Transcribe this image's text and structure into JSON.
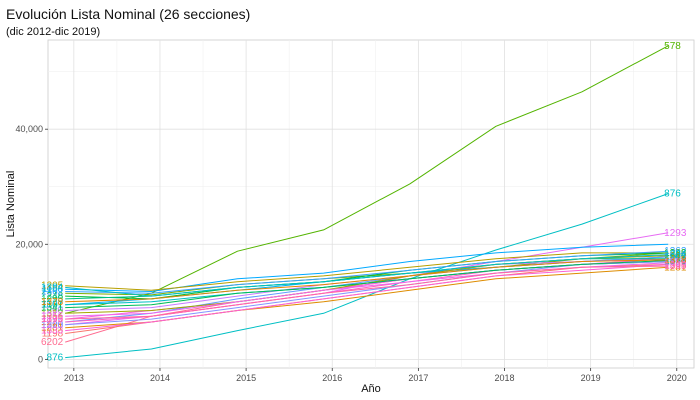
{
  "chart_title": "Evolución Lista Nominal (26 secciones)",
  "chart_subtitle": "(dic 2012-dic 2019)",
  "chart_data": {
    "type": "line",
    "title": "Evolución Lista Nominal (26 secciones)",
    "subtitle": "(dic 2012-dic 2019)",
    "xlabel": "Año",
    "ylabel": "Lista Nominal",
    "xlim": [
      2012.7,
      2020.2
    ],
    "ylim": [
      -1500,
      55500
    ],
    "x_ticks": [
      2013,
      2014,
      2015,
      2016,
      2017,
      2018,
      2019,
      2020
    ],
    "y_ticks": [
      0,
      20000,
      40000
    ],
    "y_tick_labels": [
      "0",
      "20,000",
      "40,000"
    ],
    "grid": true,
    "x": [
      2012.9,
      2013.9,
      2014.9,
      2015.9,
      2016.9,
      2017.9,
      2018.9,
      2019.9
    ],
    "series": [
      {
        "name": "578",
        "color": "#53B400",
        "values": [
          8000,
          11500,
          18800,
          22500,
          30500,
          40500,
          46500,
          54500
        ],
        "label_left": false,
        "label_right": true
      },
      {
        "name": "876",
        "color": "#00BFC4",
        "values": [
          300,
          1800,
          5000,
          8000,
          14000,
          19000,
          23500,
          28800
        ],
        "label_left": true,
        "label_right": true
      },
      {
        "name": "1293",
        "color": "#E76BF3",
        "values": [
          6000,
          7500,
          9500,
          11500,
          14500,
          17000,
          19500,
          22000
        ],
        "label_left": true,
        "label_right": true
      },
      {
        "name": "1158",
        "color": "#00A9FF",
        "values": [
          12200,
          11800,
          14000,
          15000,
          17000,
          18500,
          19500,
          20000
        ],
        "label_left": true,
        "label_right": false
      },
      {
        "name": "1236",
        "color": "#7CAE00",
        "values": [
          11500,
          11200,
          13000,
          14000,
          15000,
          16000,
          17500,
          18500
        ],
        "label_left": false,
        "label_right": true
      },
      {
        "name": "6202",
        "color": "#FF6C91",
        "values": [
          3000,
          7500,
          10000,
          12000,
          14000,
          15500,
          16500,
          17000
        ],
        "label_left": true,
        "label_right": false
      },
      {
        "name": "1198",
        "color": "#F8766D",
        "values": [
          4500,
          6500,
          8500,
          10500,
          12500,
          14500,
          16000,
          16500
        ],
        "label_left": true,
        "label_right": false
      },
      {
        "name": "1167",
        "color": "#00B0F6",
        "values": [
          9500,
          10500,
          12000,
          13500,
          15000,
          16000,
          17000,
          17800
        ],
        "label_left": true,
        "label_right": true
      },
      {
        "name": "1172",
        "color": "#F564E3",
        "values": [
          7000,
          8500,
          10000,
          12000,
          14000,
          15500,
          16500,
          17500
        ],
        "label_left": true,
        "label_right": true
      },
      {
        "name": "1205",
        "color": "#B79F00",
        "values": [
          12800,
          12000,
          13500,
          14500,
          16000,
          17500,
          18500,
          18500
        ],
        "label_left": true,
        "label_right": false
      },
      {
        "name": "1233",
        "color": "#619CFF",
        "values": [
          6500,
          8000,
          10500,
          12500,
          14500,
          16000,
          17000,
          17800
        ],
        "label_left": true,
        "label_right": true
      },
      {
        "name": "1248",
        "color": "#00BA38",
        "values": [
          11000,
          10500,
          12500,
          13500,
          15500,
          17000,
          18000,
          18500
        ],
        "label_left": true,
        "label_right": true
      },
      {
        "name": "1260",
        "color": "#C77CFF",
        "values": [
          8500,
          9000,
          11000,
          13000,
          14500,
          16500,
          17000,
          17500
        ],
        "label_left": true,
        "label_right": true
      },
      {
        "name": "1277",
        "color": "#FF61C3",
        "values": [
          6500,
          7500,
          9500,
          11500,
          13500,
          15500,
          16500,
          17500
        ],
        "label_left": true,
        "label_right": true
      },
      {
        "name": "1281",
        "color": "#DE8C00",
        "values": [
          5500,
          6500,
          8500,
          10000,
          12000,
          14000,
          15000,
          16000
        ],
        "label_left": true,
        "label_right": true
      },
      {
        "name": "1295",
        "color": "#00C08B",
        "values": [
          10500,
          11000,
          12500,
          13500,
          15000,
          16500,
          17500,
          17500
        ],
        "label_left": true,
        "label_right": true
      },
      {
        "name": "1301",
        "color": "#00BFC4",
        "values": [
          9500,
          10000,
          11500,
          12500,
          14000,
          15500,
          16500,
          17000
        ],
        "label_left": true,
        "label_right": true
      },
      {
        "name": "1312",
        "color": "#A3A500",
        "values": [
          8000,
          8500,
          10000,
          12000,
          14500,
          16500,
          17500,
          18000
        ],
        "label_left": true,
        "label_right": true
      },
      {
        "name": "1320",
        "color": "#8494FF",
        "values": [
          6000,
          7000,
          9000,
          11000,
          13000,
          15000,
          16500,
          17000
        ],
        "label_left": true,
        "label_right": true
      },
      {
        "name": "1333",
        "color": "#FB61D7",
        "values": [
          5000,
          6500,
          8500,
          10500,
          12500,
          14500,
          15500,
          16500
        ],
        "label_left": true,
        "label_right": true
      },
      {
        "name": "1341",
        "color": "#00BC56",
        "values": [
          9000,
          9500,
          11500,
          12500,
          14000,
          15500,
          16500,
          17200
        ],
        "label_left": true,
        "label_right": true
      },
      {
        "name": "1356",
        "color": "#EF67EB",
        "values": [
          7500,
          8000,
          10000,
          12000,
          13500,
          15000,
          16000,
          16800
        ],
        "label_left": true,
        "label_right": true
      },
      {
        "name": "1362",
        "color": "#35A2FF",
        "values": [
          11800,
          11500,
          13000,
          14000,
          15500,
          17000,
          18000,
          18800
        ],
        "label_left": true,
        "label_right": true
      },
      {
        "name": "1378",
        "color": "#E58700",
        "values": [
          10000,
          10500,
          12000,
          13000,
          14500,
          16000,
          17000,
          17300
        ],
        "label_left": true,
        "label_right": true
      },
      {
        "name": "1384",
        "color": "#00BFC4",
        "values": [
          12500,
          11000,
          12500,
          13500,
          15000,
          16500,
          17500,
          18200
        ],
        "label_left": true,
        "label_right": true
      },
      {
        "name": "1395",
        "color": "#FF67A4",
        "values": [
          7000,
          7500,
          9500,
          11500,
          13000,
          15000,
          16000,
          16200
        ],
        "label_left": true,
        "label_right": true
      }
    ]
  }
}
